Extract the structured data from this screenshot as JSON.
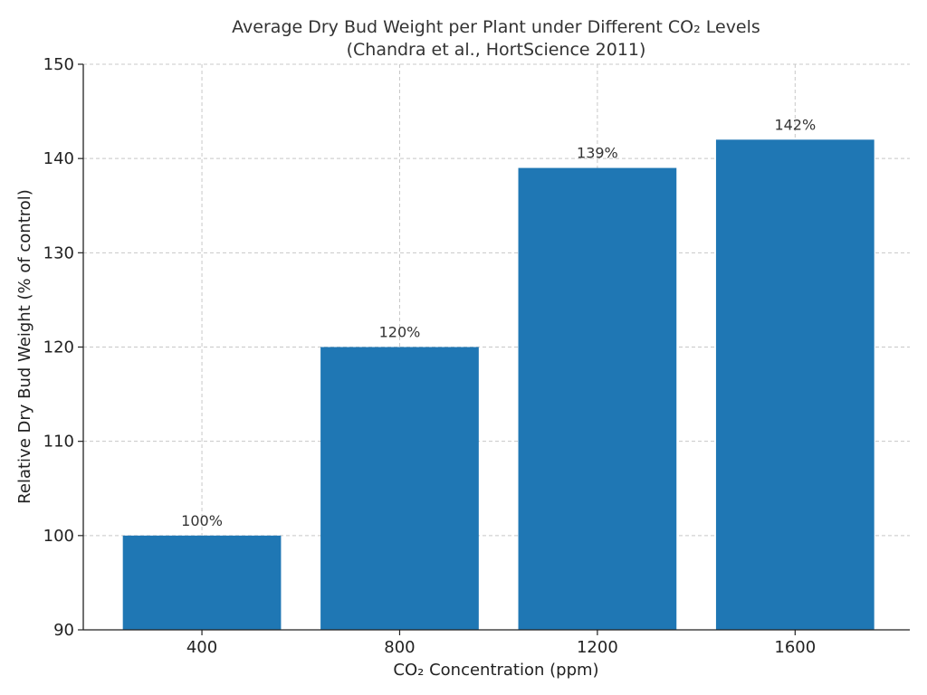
{
  "chart_data": {
    "type": "bar",
    "title": "Average Dry Bud Weight per Plant under Different CO₂ Levels",
    "subtitle": "(Chandra et al., HortScience 2011)",
    "xlabel": "CO₂ Concentration (ppm)",
    "ylabel": "Relative Dry Bud Weight (% of control)",
    "categories": [
      "400",
      "800",
      "1200",
      "1600"
    ],
    "values": [
      100,
      120,
      139,
      142
    ],
    "data_labels": [
      "100%",
      "120%",
      "139%",
      "142%"
    ],
    "ylim": [
      90,
      150
    ],
    "yticks": [
      90,
      100,
      110,
      120,
      130,
      140,
      150
    ],
    "grid": true,
    "bar_color": "#1f77b4"
  }
}
